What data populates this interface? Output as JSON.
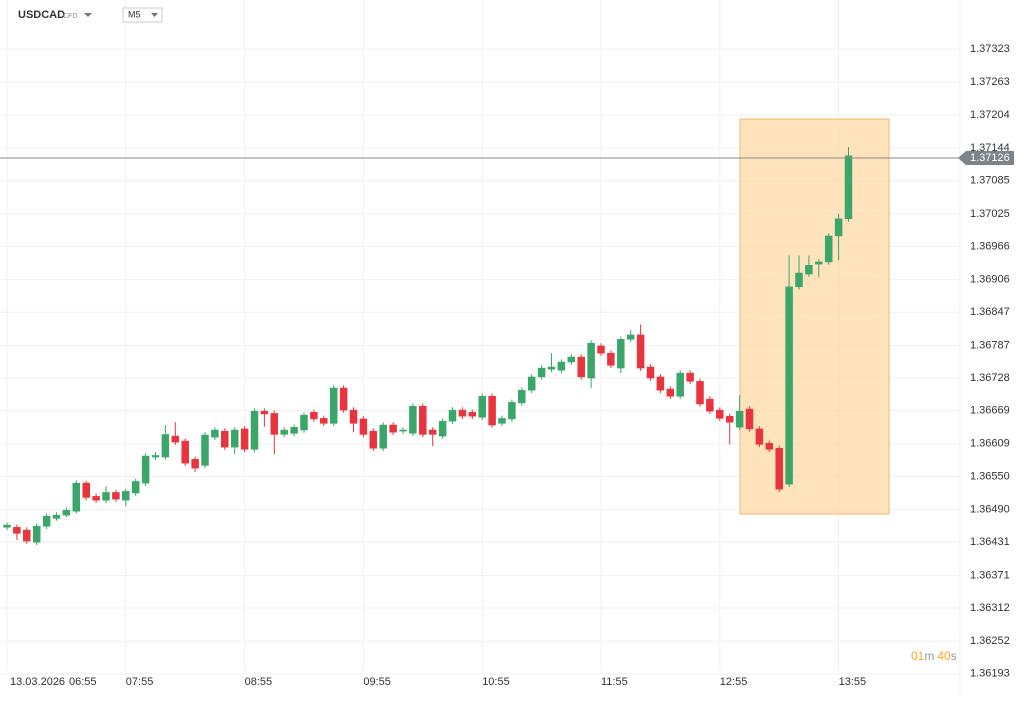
{
  "header": {
    "symbol": "USDCAD",
    "instrument_type": "CFD",
    "timeframe": "M5"
  },
  "timer": [
    "01",
    "m",
    "40",
    "s"
  ],
  "chart_data": {
    "type": "candlestick",
    "date_label": "13.03.2026",
    "categories": [
      "06:55",
      null,
      null,
      null,
      null,
      null,
      null,
      null,
      null,
      null,
      null,
      null,
      "07:55",
      null,
      null,
      null,
      null,
      null,
      null,
      null,
      null,
      null,
      null,
      null,
      "08:55",
      null,
      null,
      null,
      null,
      null,
      null,
      null,
      null,
      null,
      null,
      null,
      "09:55",
      null,
      null,
      null,
      null,
      null,
      null,
      null,
      null,
      null,
      null,
      null,
      "10:55",
      null,
      null,
      null,
      null,
      null,
      null,
      null,
      null,
      null,
      null,
      null,
      "11:55",
      null,
      null,
      null,
      null,
      null,
      null,
      null,
      null,
      null,
      null,
      null,
      "12:55",
      null,
      null,
      null,
      null,
      null,
      null,
      null,
      null,
      null,
      null,
      null,
      "13:55",
      null
    ],
    "open": [
      1.36458,
      1.36458,
      1.36453,
      1.36431,
      1.3646,
      1.36474,
      1.3648,
      1.36487,
      1.36538,
      1.36514,
      1.36507,
      1.36521,
      1.36507,
      1.3652,
      1.36538,
      1.36585,
      1.36585,
      1.36623,
      1.36614,
      1.36581,
      1.3657,
      1.36621,
      1.36632,
      1.36603,
      1.36636,
      1.36599,
      1.36668,
      1.36664,
      1.36626,
      1.36628,
      1.36634,
      1.36666,
      1.36655,
      1.36646,
      1.3671,
      1.3667,
      1.36654,
      1.36632,
      1.36601,
      1.36643,
      1.36632,
      1.36628,
      1.36677,
      1.36634,
      1.36623,
      1.3665,
      1.3667,
      1.36666,
      1.36657,
      1.36695,
      1.36646,
      1.36654,
      1.36683,
      1.36706,
      1.3673,
      1.36744,
      1.36742,
      1.36757,
      1.36766,
      1.36728,
      1.36786,
      1.36773,
      1.36746,
      1.36798,
      1.36806,
      1.36748,
      1.3673,
      1.36708,
      1.36695,
      1.36737,
      1.36722,
      1.3669,
      1.3667,
      1.36659,
      1.36639,
      1.36672,
      1.36636,
      1.3661,
      1.36601,
      1.36536,
      1.36893,
      1.36916,
      1.36934,
      1.36938,
      1.36985,
      1.37016
    ],
    "high": [
      1.36467,
      1.36463,
      1.36458,
      1.36465,
      1.36483,
      1.36485,
      1.36494,
      1.36543,
      1.36542,
      1.36519,
      1.36532,
      1.36526,
      1.36528,
      1.36546,
      1.36592,
      1.36594,
      1.36643,
      1.36648,
      1.36619,
      1.36586,
      1.3663,
      1.36639,
      1.36637,
      1.36639,
      1.36641,
      1.36673,
      1.36673,
      1.36669,
      1.36639,
      1.36644,
      1.36666,
      1.36671,
      1.3666,
      1.36715,
      1.36715,
      1.36675,
      1.36659,
      1.36637,
      1.36648,
      1.36648,
      1.36639,
      1.36682,
      1.36682,
      1.36639,
      1.36655,
      1.36675,
      1.36675,
      1.36671,
      1.367,
      1.367,
      1.3666,
      1.36689,
      1.36711,
      1.36735,
      1.36751,
      1.36773,
      1.36762,
      1.36771,
      1.36771,
      1.36796,
      1.36791,
      1.36778,
      1.36803,
      1.36815,
      1.36825,
      1.36753,
      1.36735,
      1.36713,
      1.36742,
      1.36742,
      1.36727,
      1.36695,
      1.36675,
      1.36664,
      1.36697,
      1.36677,
      1.36641,
      1.36615,
      1.36606,
      1.3695,
      1.3695,
      1.3695,
      1.36943,
      1.3699,
      1.37025,
      1.37146
    ],
    "low": [
      1.36453,
      1.36435,
      1.36428,
      1.36426,
      1.36455,
      1.3647,
      1.36476,
      1.36483,
      1.36507,
      1.36502,
      1.36502,
      1.36504,
      1.36496,
      1.36515,
      1.36533,
      1.3658,
      1.3658,
      1.36607,
      1.36569,
      1.36558,
      1.36565,
      1.36616,
      1.36598,
      1.3659,
      1.36594,
      1.36594,
      1.3664,
      1.3659,
      1.36621,
      1.36623,
      1.36629,
      1.36649,
      1.36641,
      1.36641,
      1.36665,
      1.3663,
      1.36621,
      1.36596,
      1.36596,
      1.36625,
      1.36627,
      1.36623,
      1.36621,
      1.36605,
      1.36618,
      1.36645,
      1.36654,
      1.36654,
      1.36652,
      1.36638,
      1.36641,
      1.36649,
      1.36678,
      1.36701,
      1.36725,
      1.36739,
      1.36737,
      1.36752,
      1.36725,
      1.3671,
      1.36768,
      1.36746,
      1.36737,
      1.36793,
      1.36741,
      1.36723,
      1.36701,
      1.3669,
      1.3669,
      1.36717,
      1.36676,
      1.36663,
      1.3665,
      1.36608,
      1.36634,
      1.36631,
      1.36603,
      1.36594,
      1.36522,
      1.36531,
      1.36888,
      1.36911,
      1.3691,
      1.36933,
      1.36941,
      1.37011
    ],
    "close": [
      1.36462,
      1.36447,
      1.36433,
      1.3646,
      1.36478,
      1.3648,
      1.36489,
      1.36538,
      1.36512,
      1.36507,
      1.36521,
      1.36509,
      1.36523,
      1.36541,
      1.36587,
      1.36588,
      1.36626,
      1.36612,
      1.36574,
      1.36565,
      1.36625,
      1.36634,
      1.36603,
      1.36634,
      1.36599,
      1.36668,
      1.36663,
      1.36626,
      1.36634,
      1.36639,
      1.36661,
      1.36654,
      1.36646,
      1.3671,
      1.3667,
      1.36646,
      1.36626,
      1.36601,
      1.36643,
      1.3663,
      1.36634,
      1.36677,
      1.36626,
      1.36626,
      1.3665,
      1.3667,
      1.36659,
      1.36659,
      1.36695,
      1.36643,
      1.36655,
      1.36684,
      1.36706,
      1.3673,
      1.36746,
      1.36748,
      1.36757,
      1.36766,
      1.3673,
      1.36791,
      1.36773,
      1.36751,
      1.36798,
      1.36806,
      1.36746,
      1.36728,
      1.36706,
      1.36695,
      1.36737,
      1.36722,
      1.36681,
      1.36668,
      1.36655,
      1.36648,
      1.36668,
      1.36636,
      1.36608,
      1.36599,
      1.36527,
      1.36893,
      1.36918,
      1.36932,
      1.36938,
      1.36985,
      1.37016,
      1.3713
    ],
    "up_color": "#3aa66a",
    "down_color": "#e8343e",
    "last_price": 1.37126,
    "ylim": [
      1.3618,
      1.3741
    ],
    "yticks": [
      1.37323,
      1.37263,
      1.37204,
      1.37144,
      1.37085,
      1.37025,
      1.36966,
      1.36906,
      1.36847,
      1.36787,
      1.36728,
      1.36669,
      1.36609,
      {
        "value": 1.3655,
        "label": "1.36550"
      },
      {
        "value": 1.3649,
        "label": "1.36490"
      },
      1.36431,
      1.36371,
      1.36312,
      1.36252,
      1.36193
    ],
    "grid": true
  }
}
